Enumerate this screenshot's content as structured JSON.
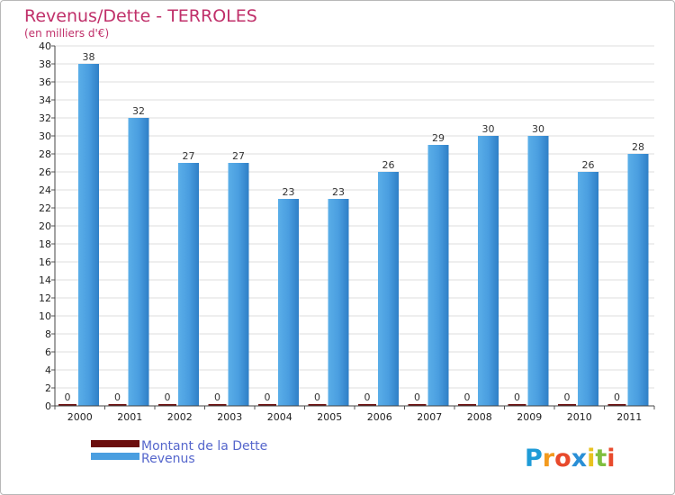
{
  "chart_data": {
    "type": "bar",
    "title": "Revenus/Dette - TERROLES",
    "subtitle": "(en milliers d'€)",
    "categories": [
      "2000",
      "2001",
      "2002",
      "2003",
      "2004",
      "2005",
      "2006",
      "2007",
      "2008",
      "2009",
      "2010",
      "2011"
    ],
    "series": [
      {
        "name": "Montant de la Dette",
        "color": "#6b0d0d",
        "values": [
          0,
          0,
          0,
          0,
          0,
          0,
          0,
          0,
          0,
          0,
          0,
          0
        ]
      },
      {
        "name": "Revenus",
        "color": "#4a9ee0",
        "values": [
          38,
          32,
          27,
          27,
          23,
          23,
          26,
          29,
          30,
          30,
          26,
          28
        ]
      }
    ],
    "ylim": [
      0,
      40
    ],
    "yticks": [
      0,
      2,
      4,
      6,
      8,
      10,
      12,
      14,
      16,
      18,
      20,
      22,
      24,
      26,
      28,
      30,
      32,
      34,
      36,
      38,
      40
    ],
    "grid": true,
    "legend_position": "bottom-left"
  },
  "logo": {
    "letters": [
      "P",
      "r",
      "o",
      "x",
      "i",
      "t",
      "i"
    ],
    "colors": [
      "#1e9bd7",
      "#f39a1e",
      "#e84a2c",
      "#2a8fd6",
      "#e8c21f",
      "#7fbf3f",
      "#e84a2c"
    ]
  }
}
